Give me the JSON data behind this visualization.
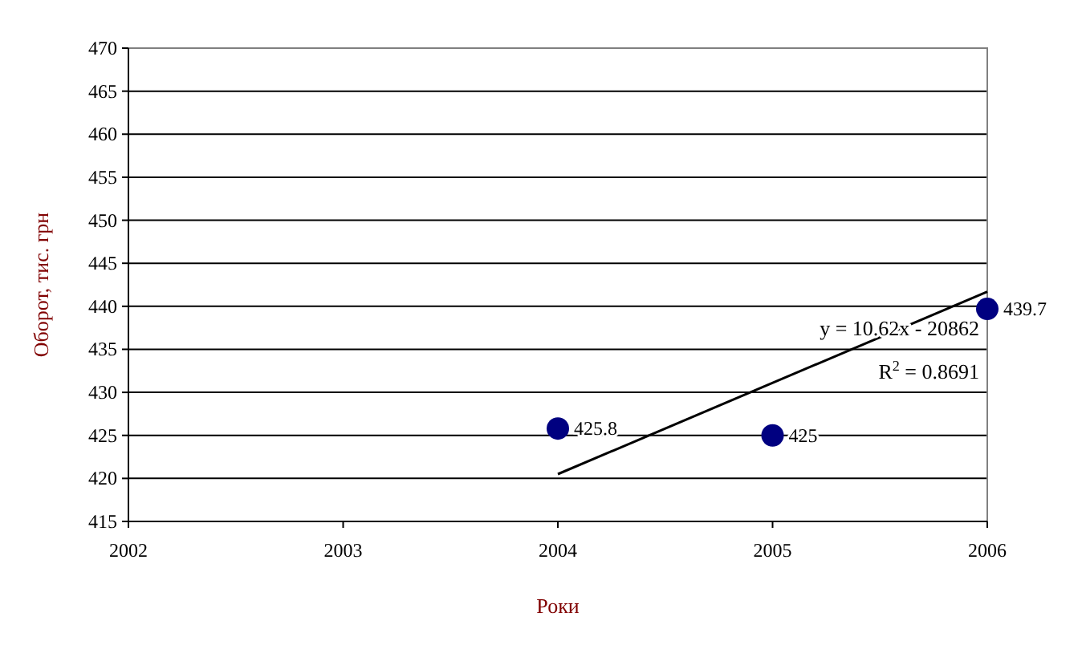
{
  "chart_data": {
    "type": "scatter",
    "xlabel": "Роки",
    "ylabel": "Оборот, тис. грн",
    "x": [
      2004,
      2005,
      2006
    ],
    "series": [
      {
        "color": "#000080",
        "values": [
          425.8,
          425,
          439.7
        ],
        "value_labels": [
          "425.8",
          "425",
          "439.7"
        ],
        "marker": "circle"
      },
      {
        "type": "line",
        "color": "#000000",
        "x": [
          2004,
          2006
        ],
        "values": [
          420.5,
          441.7
        ],
        "marker": "none",
        "line_style": "solid"
      }
    ],
    "xlim": [
      2002,
      2006
    ],
    "xticks": [
      2002,
      2003,
      2004,
      2005,
      2006
    ],
    "ylim": [
      415,
      470
    ],
    "yticks": [
      415,
      420,
      425,
      430,
      435,
      440,
      445,
      450,
      455,
      460,
      465,
      470
    ],
    "grid": "y",
    "annotations": [
      "y = 10.62x - 20862",
      "R$^{2}$ = 0.8691"
    ]
  }
}
